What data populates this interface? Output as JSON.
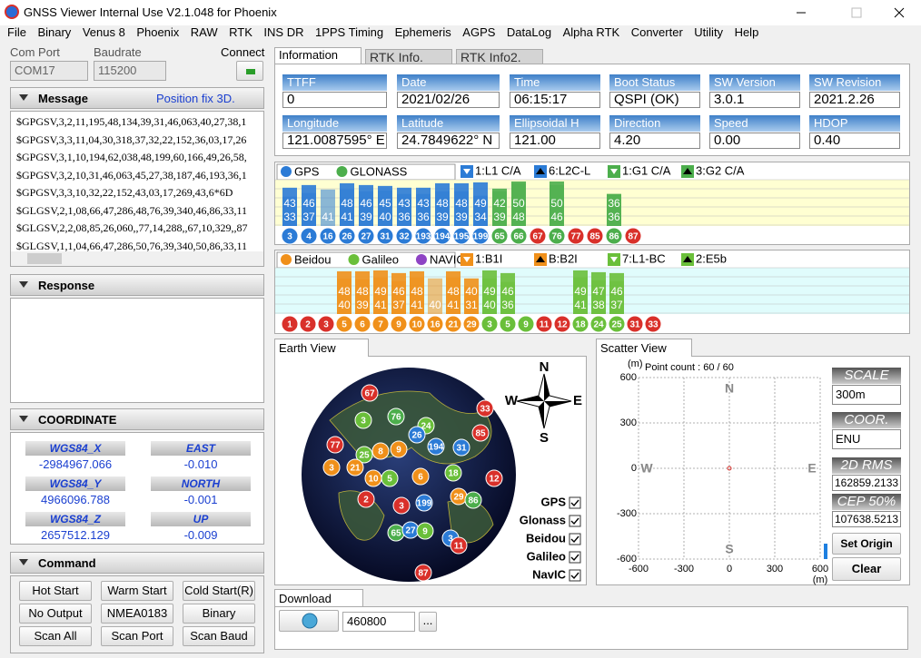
{
  "window": {
    "title": "GNSS Viewer Internal Use V2.1.048 for Phoenix"
  },
  "menu": [
    "File",
    "Binary",
    "Venus 8",
    "Phoenix",
    "RAW",
    "RTK",
    "INS DR",
    "1PPS Timing",
    "Ephemeris",
    "AGPS",
    "DataLog",
    "Alpha RTK",
    "Converter",
    "Utility",
    "Help"
  ],
  "connection": {
    "com_port_label": "Com Port",
    "com_port": "COM17",
    "baudrate_label": "Baudrate",
    "baudrate": "115200",
    "connect_label": "Connect"
  },
  "message": {
    "title": "Message",
    "status": "Position fix 3D.",
    "lines": [
      "$GPGSV,3,2,11,195,48,134,39,31,46,063,40,27,38,1",
      "$GPGSV,3,3,11,04,30,318,37,32,22,152,36,03,17,26",
      "$GPGSV,3,1,10,194,62,038,48,199,60,166,49,26,58,",
      "$GPGSV,3,2,10,31,46,063,45,27,38,187,46,193,36,1",
      "$GPGSV,3,3,10,32,22,152,43,03,17,269,43,6*6D",
      "$GLGSV,2,1,08,66,47,286,48,76,39,340,46,86,33,11",
      "$GLGSV,2,2,08,85,26,060,,77,14,288,,67,10,329,,87",
      "$GLGSV,1,1,04,66,47,286,50,76,39,340,50,86,33,11"
    ]
  },
  "response": {
    "title": "Response"
  },
  "coordinate": {
    "title": "COORDINATE",
    "fields": [
      {
        "label": "WGS84_X",
        "value": "-2984967.066"
      },
      {
        "label": "EAST",
        "value": "-0.010"
      },
      {
        "label": "WGS84_Y",
        "value": "4966096.788"
      },
      {
        "label": "NORTH",
        "value": "-0.001"
      },
      {
        "label": "WGS84_Z",
        "value": "2657512.129"
      },
      {
        "label": "UP",
        "value": "-0.009"
      }
    ]
  },
  "command": {
    "title": "Command",
    "buttons": [
      "Hot Start",
      "Warm Start",
      "Cold Start(R)",
      "No Output",
      "NMEA0183",
      "Binary",
      "Scan All",
      "Scan Port",
      "Scan Baud"
    ]
  },
  "tabs": [
    "Information",
    "RTK Info.",
    "RTK Info2."
  ],
  "information": [
    {
      "label": "TTFF",
      "value": "0"
    },
    {
      "label": "Date",
      "value": "2021/02/26"
    },
    {
      "label": "Time",
      "value": "06:15:17"
    },
    {
      "label": "Boot Status",
      "value": "QSPI (OK)"
    },
    {
      "label": "SW Version",
      "value": "3.0.1"
    },
    {
      "label": "SW Revision",
      "value": "2021.2.26"
    },
    {
      "label": "Longitude",
      "value": "121.0087595° E"
    },
    {
      "label": "Latitude",
      "value": "24.7849622° N"
    },
    {
      "label": "Ellipsoidal H",
      "value": "121.00"
    },
    {
      "label": "Direction",
      "value": "4.20"
    },
    {
      "label": "Speed",
      "value": "0.00"
    },
    {
      "label": "HDOP",
      "value": "0.40"
    }
  ],
  "snr_panels": [
    {
      "background": "#ffffd2",
      "legend": [
        {
          "name": "GPS",
          "color": "#2b7bd6"
        },
        {
          "name": "GLONASS",
          "color": "#4cae4c"
        }
      ],
      "bands": [
        {
          "label": "1:L1 C/A",
          "color": "#2b7bd6"
        },
        {
          "label": "6:L2C-L",
          "color": "#2b7bd6"
        },
        {
          "label": "1:G1 C/A",
          "color": "#4cae4c"
        },
        {
          "label": "3:G2 C/A",
          "color": "#4cae4c"
        }
      ],
      "sats": [
        {
          "id": 3,
          "color": "#2b7bd6",
          "snr": [
            43,
            33
          ]
        },
        {
          "id": 4,
          "color": "#2b7bd6",
          "snr": [
            46,
            37
          ]
        },
        {
          "id": 16,
          "color": "#2b7bd6",
          "snr": [
            null,
            41
          ]
        },
        {
          "id": 26,
          "color": "#2b7bd6",
          "snr": [
            48,
            41
          ]
        },
        {
          "id": 27,
          "color": "#2b7bd6",
          "snr": [
            46,
            39
          ]
        },
        {
          "id": 31,
          "color": "#2b7bd6",
          "snr": [
            45,
            40
          ]
        },
        {
          "id": 32,
          "color": "#2b7bd6",
          "snr": [
            43,
            36
          ]
        },
        {
          "id": 193,
          "color": "#2b7bd6",
          "snr": [
            43,
            36
          ]
        },
        {
          "id": 194,
          "color": "#2b7bd6",
          "snr": [
            48,
            39
          ]
        },
        {
          "id": 195,
          "color": "#2b7bd6",
          "snr": [
            48,
            39
          ]
        },
        {
          "id": 199,
          "color": "#2b7bd6",
          "snr": [
            49,
            34
          ]
        },
        {
          "id": 65,
          "color": "#4cae4c",
          "snr": [
            42,
            39
          ]
        },
        {
          "id": 66,
          "color": "#4cae4c",
          "snr": [
            50,
            48
          ]
        },
        {
          "id": 67,
          "color": "#d9302a",
          "snr": []
        },
        {
          "id": 76,
          "color": "#4cae4c",
          "snr": [
            50,
            46
          ]
        },
        {
          "id": 77,
          "color": "#d9302a",
          "snr": []
        },
        {
          "id": 85,
          "color": "#d9302a",
          "snr": []
        },
        {
          "id": 86,
          "color": "#4cae4c",
          "snr": [
            36,
            36
          ]
        },
        {
          "id": 87,
          "color": "#d9302a",
          "snr": []
        }
      ]
    },
    {
      "background": "#e0fcfc",
      "legend": [
        {
          "name": "Beidou",
          "color": "#f0901a"
        },
        {
          "name": "Galileo",
          "color": "#6abf3a"
        },
        {
          "name": "NAVIC",
          "color": "#8e44c4"
        }
      ],
      "bands": [
        {
          "label": "1:B1I",
          "color": "#f0901a"
        },
        {
          "label": "B:B2I",
          "color": "#f0901a"
        },
        {
          "label": "7:L1-BC",
          "color": "#6abf3a"
        },
        {
          "label": "2:E5b",
          "color": "#6abf3a"
        }
      ],
      "sats": [
        {
          "id": 1,
          "color": "#d9302a",
          "snr": []
        },
        {
          "id": 2,
          "color": "#d9302a",
          "snr": []
        },
        {
          "id": 3,
          "color": "#d9302a",
          "snr": []
        },
        {
          "id": 5,
          "color": "#f0901a",
          "snr": [
            48,
            40
          ]
        },
        {
          "id": 6,
          "color": "#f0901a",
          "snr": [
            48,
            39
          ]
        },
        {
          "id": 7,
          "color": "#f0901a",
          "snr": [
            49,
            41
          ]
        },
        {
          "id": 9,
          "color": "#f0901a",
          "snr": [
            46,
            37
          ]
        },
        {
          "id": 10,
          "color": "#f0901a",
          "snr": [
            48,
            41
          ]
        },
        {
          "id": 16,
          "color": "#f0901a",
          "snr": [
            null,
            40
          ]
        },
        {
          "id": 21,
          "color": "#f0901a",
          "snr": [
            48,
            41
          ]
        },
        {
          "id": 29,
          "color": "#f0901a",
          "snr": [
            40,
            31
          ]
        },
        {
          "id": 3,
          "color": "#6abf3a",
          "snr": [
            49,
            40
          ]
        },
        {
          "id": 5,
          "color": "#6abf3a",
          "snr": [
            46,
            36
          ]
        },
        {
          "id": 9,
          "color": "#6abf3a",
          "snr": []
        },
        {
          "id": 11,
          "color": "#d9302a",
          "snr": []
        },
        {
          "id": 12,
          "color": "#d9302a",
          "snr": []
        },
        {
          "id": 18,
          "color": "#6abf3a",
          "snr": [
            49,
            41
          ]
        },
        {
          "id": 24,
          "color": "#6abf3a",
          "snr": [
            47,
            38
          ]
        },
        {
          "id": 25,
          "color": "#6abf3a",
          "snr": [
            46,
            37
          ]
        },
        {
          "id": 31,
          "color": "#d9302a",
          "snr": []
        },
        {
          "id": 33,
          "color": "#d9302a",
          "snr": []
        }
      ]
    }
  ],
  "earth_view": {
    "title": "Earth View",
    "compass": [
      "N",
      "E",
      "S",
      "W"
    ],
    "checkboxes": [
      "GPS",
      "Glonass",
      "Beidou",
      "Galileo",
      "NavIC"
    ],
    "satellites": [
      {
        "id": 67,
        "color": "#d9302a"
      },
      {
        "id": 76,
        "color": "#4cae4c"
      },
      {
        "id": 3,
        "color": "#6abf3a"
      },
      {
        "id": 24,
        "color": "#6abf3a"
      },
      {
        "id": 26,
        "color": "#2b7bd6"
      },
      {
        "id": 77,
        "color": "#d9302a"
      },
      {
        "id": 194,
        "color": "#2b7bd6"
      },
      {
        "id": 31,
        "color": "#2b7bd6"
      },
      {
        "id": 85,
        "color": "#d9302a"
      },
      {
        "id": 33,
        "color": "#d9302a"
      },
      {
        "id": 25,
        "color": "#6abf3a"
      },
      {
        "id": 8,
        "color": "#f0901a"
      },
      {
        "id": 9,
        "color": "#f0901a"
      },
      {
        "id": 3,
        "color": "#f0901a"
      },
      {
        "id": 21,
        "color": "#f0901a"
      },
      {
        "id": 18,
        "color": "#6abf3a"
      },
      {
        "id": 10,
        "color": "#f0901a"
      },
      {
        "id": 5,
        "color": "#6abf3a"
      },
      {
        "id": 6,
        "color": "#f0901a"
      },
      {
        "id": 12,
        "color": "#d9302a"
      },
      {
        "id": 2,
        "color": "#d9302a"
      },
      {
        "id": 3,
        "color": "#d9302a"
      },
      {
        "id": 199,
        "color": "#2b7bd6"
      },
      {
        "id": 29,
        "color": "#f0901a"
      },
      {
        "id": 86,
        "color": "#4cae4c"
      },
      {
        "id": 65,
        "color": "#4cae4c"
      },
      {
        "id": 27,
        "color": "#2b7bd6"
      },
      {
        "id": 9,
        "color": "#6abf3a"
      },
      {
        "id": 3,
        "color": "#2b7bd6"
      },
      {
        "id": 11,
        "color": "#d9302a"
      },
      {
        "id": 87,
        "color": "#d9302a"
      }
    ]
  },
  "scatter": {
    "title": "Scatter View",
    "y_unit": "(m)",
    "x_unit": "(m)",
    "point_count": "Point count : 60 / 60",
    "xlim": [
      -600,
      600
    ],
    "ylim": [
      -600,
      600
    ],
    "xticks": [
      -600,
      -300,
      0,
      300,
      600
    ],
    "yticks": [
      600,
      300,
      0,
      -300,
      -600
    ],
    "directions": [
      "N",
      "S",
      "W",
      "E"
    ],
    "scale_label": "SCALE",
    "scale": "300m",
    "coor_label": "COOR.",
    "coor": "ENU",
    "rms_label": "2D RMS",
    "rms": "162859.2133",
    "cep_label": "CEP 50%",
    "cep": "107638.5213",
    "set_origin": "Set Origin",
    "clear": "Clear"
  },
  "download": {
    "title": "Download",
    "baudrate": "460800",
    "browse": "..."
  }
}
